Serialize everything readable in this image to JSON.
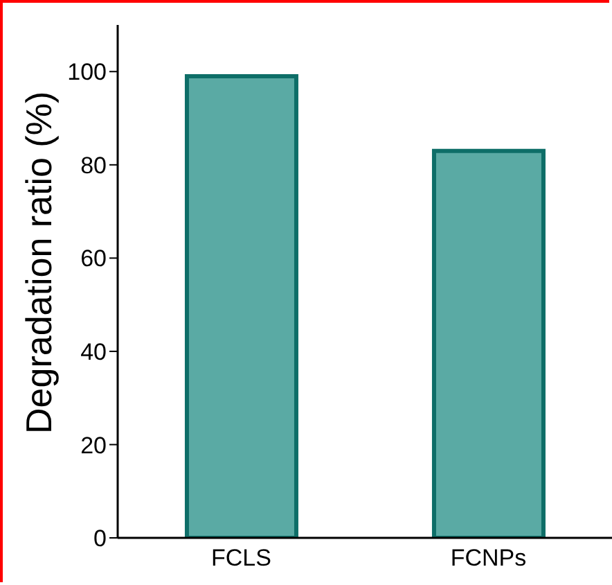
{
  "chart_data": {
    "type": "bar",
    "ylabel": "Degradation ratio (%)",
    "categories": [
      "FCLS",
      "FCNPs"
    ],
    "series": [
      {
        "color": "#5aaaa4",
        "values": [
          99,
          83
        ]
      }
    ],
    "ylim": [
      0,
      110
    ],
    "yticks": [
      0,
      20,
      40,
      60,
      80,
      100
    ]
  }
}
